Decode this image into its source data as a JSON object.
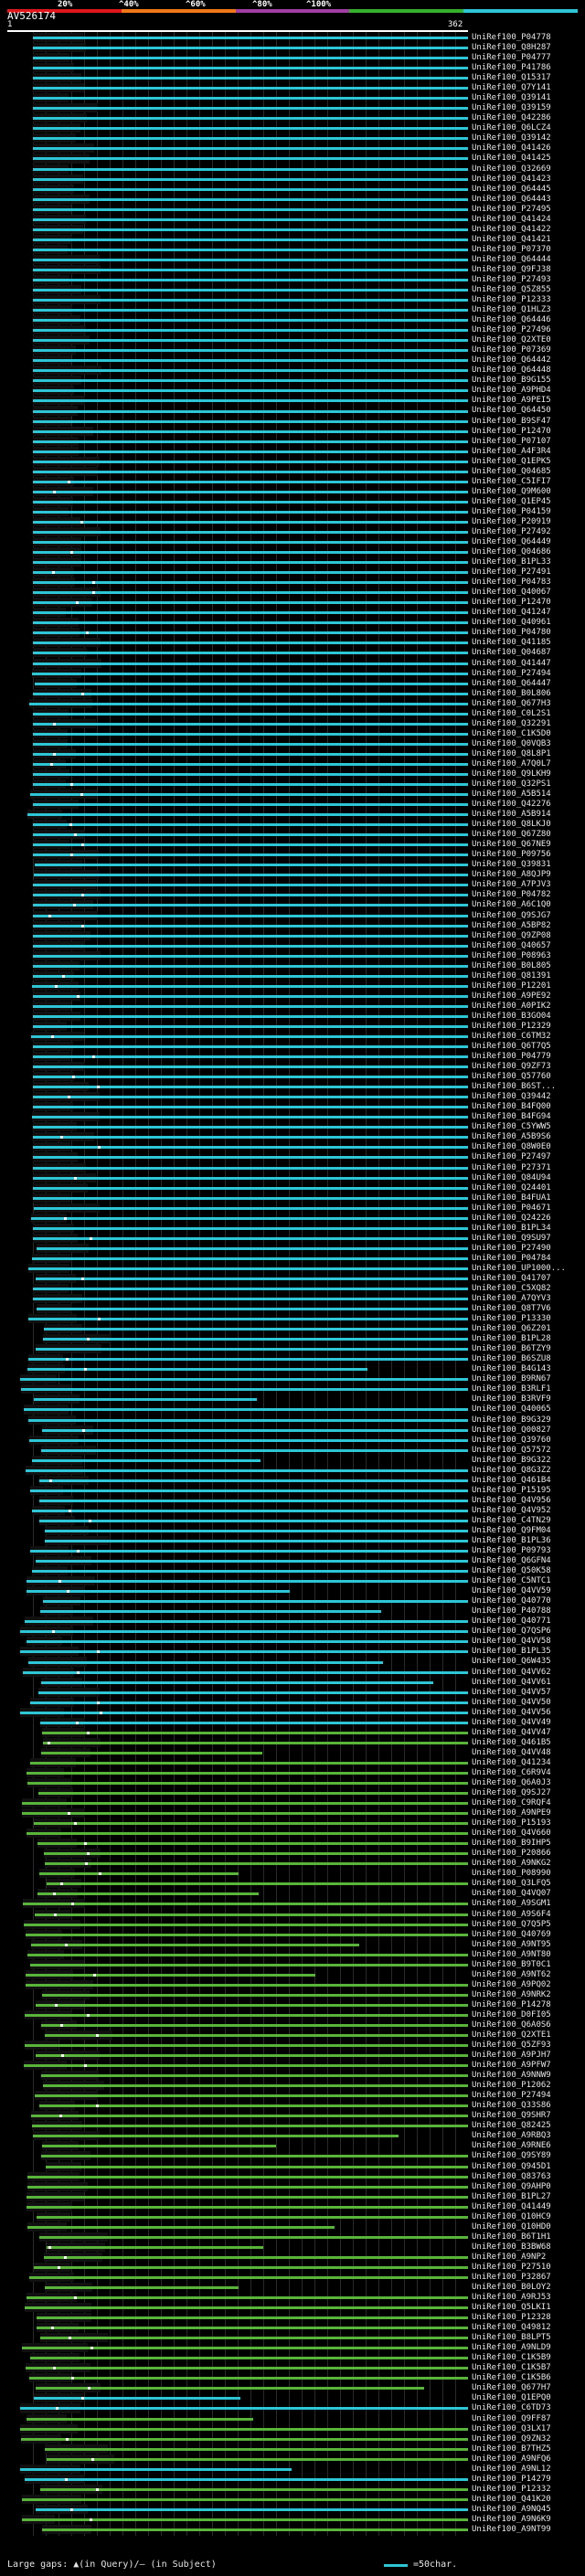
{
  "scale": {
    "labels": [
      "20%",
      "^40%",
      "^60%",
      "^80%",
      "^100%"
    ],
    "colors": [
      "#e0161c",
      "#f07818",
      "#a13ea3",
      "#36b02c",
      "#2dc6d6"
    ]
  },
  "query": {
    "name": "AV526174",
    "start": "1",
    "end": "362"
  },
  "legend": {
    "gaps_text": "Large gaps: ▲(in Query)/– (in Subject)",
    "swatch_color": "#2dc6d6",
    "swatch_text": "=50char."
  },
  "colors": {
    "cyan": "#2dc6d6",
    "green": "#59b43a",
    "white": "#ffffff"
  },
  "hits": [
    "UniRef100_P04778",
    "UniRef100_Q8H287",
    "UniRef100_P04777",
    "UniRef100_P41786",
    "UniRef100_Q15317",
    "UniRef100_Q7Y141",
    "UniRef100_Q39141",
    "UniRef100_Q39159",
    "UniRef100_Q42286",
    "UniRef100_Q6LCZ4",
    "UniRef100_Q39142",
    "UniRef100_Q41426",
    "UniRef100_Q41425",
    "UniRef100_Q32669",
    "UniRef100_Q41423",
    "UniRef100_Q64445",
    "UniRef100_Q64443",
    "UniRef100_P27495",
    "UniRef100_Q41424",
    "UniRef100_Q41422",
    "UniRef100_Q41421",
    "UniRef100_P07370",
    "UniRef100_Q64444",
    "UniRef100_Q9FJ38",
    "UniRef100_P27493",
    "UniRef100_Q5Z855",
    "UniRef100_P12333",
    "UniRef100_Q1HLZ3",
    "UniRef100_Q64446",
    "UniRef100_P27496",
    "UniRef100_Q2XTE0",
    "UniRef100_P07369",
    "UniRef100_Q64442",
    "UniRef100_Q64448",
    "UniRef100_B9G155",
    "UniRef100_A9PHD4",
    "UniRef100_A9PEI5",
    "UniRef100_Q64450",
    "UniRef100_B9SF47",
    "UniRef100_P12470",
    "UniRef100_P07107",
    "UniRef100_A4F3R4",
    "UniRef100_Q1EPK5",
    "UniRef100_Q04685",
    "UniRef100_C5IFI7",
    "UniRef100_Q9M600",
    "UniRef100_Q1EP45",
    "UniRef100_P04159",
    "UniRef100_P20919",
    "UniRef100_P27492",
    "UniRef100_Q64449",
    "UniRef100_Q04686",
    "UniRef100_B1PL33",
    "UniRef100_P27491",
    "UniRef100_P04783",
    "UniRef100_Q40067",
    "UniRef100_P12470",
    "UniRef100_Q41247",
    "UniRef100_Q40961",
    "UniRef100_P04780",
    "UniRef100_Q41185",
    "UniRef100_Q04687",
    "UniRef100_Q41447",
    "UniRef100_P27494",
    "UniRef100_Q64447",
    "UniRef100_B0L806",
    "UniRef100_Q677H3",
    "UniRef100_C0L2S1",
    "UniRef100_Q32291",
    "UniRef100_C1K5D0",
    "UniRef100_Q0VQB3",
    "UniRef100_Q8L8P1",
    "UniRef100_A7Q0L7",
    "UniRef100_Q9LKH9",
    "UniRef100_Q32PS1",
    "UniRef100_A5B514",
    "UniRef100_Q42276",
    "UniRef100_A5B914",
    "UniRef100_Q8LKJ0",
    "UniRef100_Q67Z80",
    "UniRef100_Q67NE9",
    "UniRef100_P09756",
    "UniRef100_Q39831",
    "UniRef100_A8QJP9",
    "UniRef100_A7PJV3",
    "UniRef100_P04782",
    "UniRef100_A6C1Q0",
    "UniRef100_Q9SJG7",
    "UniRef100_A5BP82",
    "UniRef100_Q9ZP08",
    "UniRef100_Q40657",
    "UniRef100_P08963",
    "UniRef100_B0L805",
    "UniRef100_Q81391",
    "UniRef100_P12201",
    "UniRef100_A9PE92",
    "UniRef100_A0PIK2",
    "UniRef100_B3GO04",
    "UniRef100_P12329",
    "UniRef100_C6TM32",
    "UniRef100_Q6T7Q5",
    "UniRef100_P04779",
    "UniRef100_Q9ZF73",
    "UniRef100_Q57760",
    "UniRef100_B6ST...",
    "UniRef100_Q39442",
    "UniRef100_B4FQ00",
    "UniRef100_B4FG94",
    "UniRef100_C5YWW5",
    "UniRef100_A5B9S6",
    "UniRef100_Q8W0E0",
    "UniRef100_P27497",
    "UniRef100_P27371",
    "UniRef100_Q84U94",
    "UniRef100_Q24401",
    "UniRef100_B4FUA1",
    "UniRef100_P04671",
    "UniRef100_Q24226",
    "UniRef100_B1PL34",
    "UniRef100_Q9SU97",
    "UniRef100_P27490",
    "UniRef100_P04784",
    "UniRef100_UP1000...",
    "UniRef100_Q41707",
    "UniRef100_C5XQ82",
    "UniRef100_A7QYV3",
    "UniRef100_Q8T7V6",
    "UniRef100_P13330",
    "UniRef100_Q6Z201",
    "UniRef100_B1PL28",
    "UniRef100_B6TZY9",
    "UniRef100_B6SZU8",
    "UniRef100_B4G143",
    "UniRef100_B9RN67",
    "UniRef100_B3RLF1",
    "UniRef100_B3RVF9",
    "UniRef100_Q40065",
    "UniRef100_B9G329",
    "UniRef100_Q00827",
    "UniRef100_Q39760",
    "UniRef100_Q57572",
    "UniRef100_B9G322",
    "UniRef100_Q8G3Z2",
    "UniRef100_Q461B4",
    "UniRef100_P15195",
    "UniRef100_Q4V956",
    "UniRef100_Q4V952",
    "UniRef100_C4TN29",
    "UniRef100_Q9FM04",
    "UniRef100_B1PL36",
    "UniRef100_P09793",
    "UniRef100_Q6GFN4",
    "UniRef100_Q50K58",
    "UniRef100_C5NTC1",
    "UniRef100_Q4VV59",
    "UniRef100_Q40770",
    "UniRef100_P40788",
    "UniRef100_Q40771",
    "UniRef100_Q7QSP6",
    "UniRef100_Q4VV58",
    "UniRef100_B1PL35",
    "UniRef100_Q6W435",
    "UniRef100_Q4VV62",
    "UniRef100_Q4VV61",
    "UniRef100_Q4VV57",
    "UniRef100_Q4VV50",
    "UniRef100_Q4VV56",
    "UniRef100_Q4VV49",
    "UniRef100_Q4VV47",
    "UniRef100_Q461B5",
    "UniRef100_Q4VV48",
    "UniRef100_Q41234",
    "UniRef100_C6R9V4",
    "UniRef100_Q6A0J3",
    "UniRef100_Q9SJ27",
    "UniRef100_C9RQF4",
    "UniRef100_A9NPE9",
    "UniRef100_P15193",
    "UniRef100_Q4V660",
    "UniRef100_B9IHP5",
    "UniRef100_P20866",
    "UniRef100_A9NKG2",
    "UniRef100_P08990",
    "UniRef100_Q3LFQ5",
    "UniRef100_Q4VQ07",
    "UniRef100_A9SGM1",
    "UniRef100_A9S6F4",
    "UniRef100_Q7Q5P5",
    "UniRef100_Q40769",
    "UniRef100_A9NT95",
    "UniRef100_A9NT80",
    "UniRef100_B9T0C1",
    "UniRef100_A9NT62",
    "UniRef100_A9PQ02",
    "UniRef100_A9NRK2",
    "UniRef100_P14278",
    "UniRef100_D0FI05",
    "UniRef100_Q6A0S6",
    "UniRef100_Q2XTE1",
    "UniRef100_Q5ZF93",
    "UniRef100_A9PJH7",
    "UniRef100_A9PFW7",
    "UniRef100_A9NNW9",
    "UniRef100_P12062",
    "UniRef100_P27494",
    "UniRef100_Q33S86",
    "UniRef100_Q9SHR7",
    "UniRef100_Q82425",
    "UniRef100_A9RBQ3",
    "UniRef100_A9RNE6",
    "UniRef100_Q9SY89",
    "UniRef100_Q945D1",
    "UniRef100_Q83763",
    "UniRef100_Q9AHP0",
    "UniRef100_B1PL27",
    "UniRef100_Q41449",
    "UniRef100_Q10HC9",
    "UniRef100_Q10HD0",
    "UniRef100_B6T1H1",
    "UniRef100_B3BW68",
    "UniRef100_A9NP2",
    "UniRef100_P27510",
    "UniRef100_P32867",
    "UniRef100_B0LOY2",
    "UniRef100_A9RJ53",
    "UniRef100_Q5LKI1",
    "UniRef100_P12328",
    "UniRef100_Q49812",
    "UniRef100_B8LPT5",
    "UniRef100_A9NLD9",
    "UniRef100_C1K5B9",
    "UniRef100_C1K5B7",
    "UniRef100_C1K5B6",
    "UniRef100_Q677H7",
    "UniRef100_Q1EPQ0",
    "UniRef100_C6TD73",
    "UniRef100_Q9FF87",
    "UniRef100_Q3LX17",
    "UniRef100_Q9ZN32",
    "UniRef100_B7THZ5",
    "UniRef100_A9NFQ6",
    "UniRef100_A9NL12",
    "UniRef100_P14279",
    "UniRef100_P12332",
    "UniRef100_Q41K20",
    "UniRef100_A9NQ45",
    "UniRef100_A9N6K9",
    "UniRef100_A9NT99"
  ]
}
